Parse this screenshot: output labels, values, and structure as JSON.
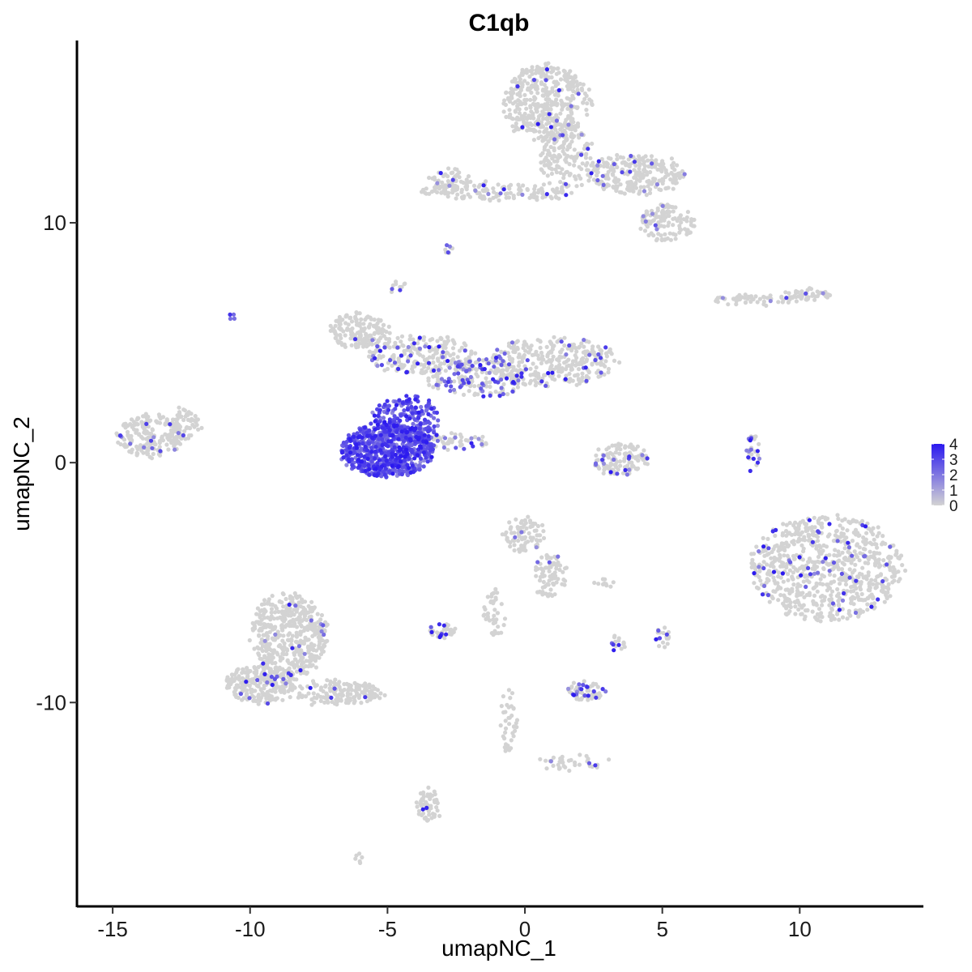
{
  "chart_data": {
    "type": "scatter",
    "title": "C1qb",
    "xlabel": "umapNC_1",
    "ylabel": "umapNC_2",
    "xlim": [
      -16.3,
      14.5
    ],
    "ylim": [
      -18.5,
      17.6
    ],
    "x_ticks": [
      -15,
      -10,
      -5,
      0,
      5,
      10
    ],
    "y_ticks": [
      -10,
      0,
      10
    ],
    "x_tick_labels": [
      "-15",
      "-10",
      "-5",
      "0",
      "5",
      "10"
    ],
    "y_tick_labels": [
      "-10",
      "0",
      "10"
    ],
    "grid": false,
    "legend": {
      "placement": "right",
      "type": "colorbar",
      "min": 0,
      "max": 4,
      "ticks": [
        0,
        1,
        2,
        3,
        4
      ],
      "tick_labels": [
        "0",
        "1",
        "2",
        "3",
        "4"
      ],
      "low_color": "#d3d3d3",
      "high_color": "#2b19ef"
    },
    "clusters": [
      {
        "cx": 0.8,
        "cy": 15.0,
        "rx": 1.6,
        "ry": 1.6,
        "n": 420,
        "expr": 0.03
      },
      {
        "cx": 1.5,
        "cy": 12.8,
        "rx": 1.0,
        "ry": 1.4,
        "n": 160,
        "expr": 0.05
      },
      {
        "cx": 4.0,
        "cy": 12.0,
        "rx": 1.8,
        "ry": 0.8,
        "n": 260,
        "expr": 0.05
      },
      {
        "cx": 5.2,
        "cy": 10.0,
        "rx": 1.0,
        "ry": 0.8,
        "n": 120,
        "expr": 0.03
      },
      {
        "cx": -1.0,
        "cy": 11.3,
        "rx": 2.8,
        "ry": 0.35,
        "n": 140,
        "expr": 0.04
      },
      {
        "cx": -2.7,
        "cy": 11.7,
        "rx": 0.8,
        "ry": 0.5,
        "n": 60,
        "expr": 0.08
      },
      {
        "cx": -6.0,
        "cy": 5.5,
        "rx": 1.1,
        "ry": 0.7,
        "n": 160,
        "expr": 0.04
      },
      {
        "cx": -3.8,
        "cy": 4.5,
        "rx": 2.0,
        "ry": 0.8,
        "n": 220,
        "expr": 0.15
      },
      {
        "cx": -1.7,
        "cy": 3.5,
        "rx": 1.8,
        "ry": 0.8,
        "n": 200,
        "expr": 0.35
      },
      {
        "cx": 1.0,
        "cy": 4.2,
        "rx": 2.4,
        "ry": 1.0,
        "n": 320,
        "expr": 0.1
      },
      {
        "cx": -4.3,
        "cy": 1.8,
        "rx": 1.2,
        "ry": 1.0,
        "n": 220,
        "expr": 0.75
      },
      {
        "cx": -5.0,
        "cy": 0.5,
        "rx": 1.7,
        "ry": 1.1,
        "n": 700,
        "expr": 0.85
      },
      {
        "cx": -2.5,
        "cy": 0.9,
        "rx": 1.2,
        "ry": 0.3,
        "n": 50,
        "expr": 0.2
      },
      {
        "cx": -13.6,
        "cy": 1.1,
        "rx": 1.2,
        "ry": 0.9,
        "n": 200,
        "expr": 0.04
      },
      {
        "cx": -12.4,
        "cy": 1.6,
        "rx": 0.6,
        "ry": 0.7,
        "n": 60,
        "expr": 0.04
      },
      {
        "cx": 3.5,
        "cy": 0.1,
        "rx": 1.0,
        "ry": 0.7,
        "n": 120,
        "expr": 0.12
      },
      {
        "cx": 8.3,
        "cy": 6.8,
        "rx": 1.5,
        "ry": 0.2,
        "n": 50,
        "expr": 0.03
      },
      {
        "cx": 10.3,
        "cy": 7.0,
        "rx": 0.9,
        "ry": 0.3,
        "n": 50,
        "expr": 0.03
      },
      {
        "cx": 8.3,
        "cy": 0.3,
        "rx": 0.2,
        "ry": 1.0,
        "n": 30,
        "expr": 0.4
      },
      {
        "cx": 11.0,
        "cy": -4.4,
        "rx": 2.8,
        "ry": 2.2,
        "n": 750,
        "expr": 0.06
      },
      {
        "cx": 0.0,
        "cy": -3.0,
        "rx": 0.8,
        "ry": 0.7,
        "n": 80,
        "expr": 0.05
      },
      {
        "cx": 0.9,
        "cy": -4.7,
        "rx": 0.6,
        "ry": 0.9,
        "n": 80,
        "expr": 0.04
      },
      {
        "cx": -1.1,
        "cy": -6.3,
        "rx": 0.4,
        "ry": 1.0,
        "n": 40,
        "expr": 0.04
      },
      {
        "cx": -3.0,
        "cy": -7.0,
        "rx": 0.5,
        "ry": 0.3,
        "n": 40,
        "expr": 0.2
      },
      {
        "cx": -8.6,
        "cy": -7.2,
        "rx": 1.4,
        "ry": 1.8,
        "n": 450,
        "expr": 0.04
      },
      {
        "cx": -9.6,
        "cy": -9.2,
        "rx": 1.3,
        "ry": 0.8,
        "n": 260,
        "expr": 0.04
      },
      {
        "cx": -6.8,
        "cy": -9.6,
        "rx": 1.6,
        "ry": 0.5,
        "n": 160,
        "expr": 0.03
      },
      {
        "cx": -3.5,
        "cy": -14.3,
        "rx": 0.4,
        "ry": 0.7,
        "n": 60,
        "expr": 0.03
      },
      {
        "cx": 2.2,
        "cy": -9.5,
        "rx": 0.7,
        "ry": 0.4,
        "n": 60,
        "expr": 0.25
      },
      {
        "cx": 1.8,
        "cy": -12.5,
        "rx": 1.3,
        "ry": 0.25,
        "n": 40,
        "expr": 0.05
      },
      {
        "cx": -0.6,
        "cy": -10.8,
        "rx": 0.3,
        "ry": 1.4,
        "n": 40,
        "expr": 0.05
      },
      {
        "cx": 3.4,
        "cy": -7.5,
        "rx": 0.3,
        "ry": 0.3,
        "n": 15,
        "expr": 0.3
      },
      {
        "cx": 5.0,
        "cy": -7.3,
        "rx": 0.3,
        "ry": 0.4,
        "n": 20,
        "expr": 0.3
      },
      {
        "cx": 2.8,
        "cy": -5.0,
        "rx": 0.4,
        "ry": 0.15,
        "n": 10,
        "expr": 0.1
      },
      {
        "cx": -10.6,
        "cy": 6.1,
        "rx": 0.1,
        "ry": 0.1,
        "n": 4,
        "expr": 0.9
      },
      {
        "cx": -4.6,
        "cy": 7.3,
        "rx": 0.3,
        "ry": 0.25,
        "n": 10,
        "expr": 0.05
      },
      {
        "cx": -2.8,
        "cy": 8.9,
        "rx": 0.15,
        "ry": 0.25,
        "n": 8,
        "expr": 0.3
      },
      {
        "cx": -6.0,
        "cy": -16.5,
        "rx": 0.2,
        "ry": 0.15,
        "n": 6,
        "expr": 0.03
      }
    ]
  }
}
